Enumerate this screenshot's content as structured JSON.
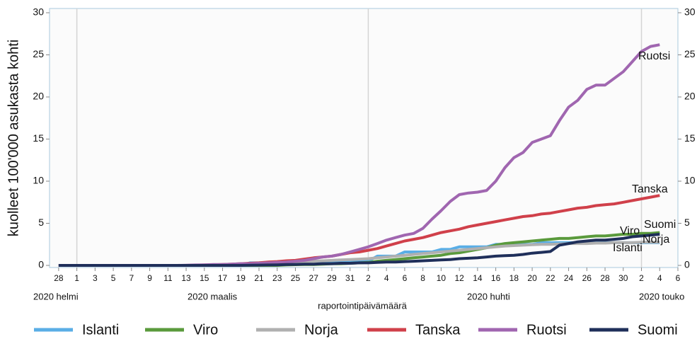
{
  "chart_data": {
    "type": "line",
    "y_label": "kuolleet 100'000 asukasta kohti",
    "x_label": "raportointipäivämäärä",
    "month_labels": [
      "2020 helmi",
      "2020 maalis",
      "2020 huhti",
      "2020 touko"
    ],
    "x": [
      "2020-02-28",
      "2020-02-29",
      "2020-03-01",
      "2020-03-02",
      "2020-03-03",
      "2020-03-04",
      "2020-03-05",
      "2020-03-06",
      "2020-03-07",
      "2020-03-08",
      "2020-03-09",
      "2020-03-10",
      "2020-03-11",
      "2020-03-12",
      "2020-03-13",
      "2020-03-14",
      "2020-03-15",
      "2020-03-16",
      "2020-03-17",
      "2020-03-18",
      "2020-03-19",
      "2020-03-20",
      "2020-03-21",
      "2020-03-22",
      "2020-03-23",
      "2020-03-24",
      "2020-03-25",
      "2020-03-26",
      "2020-03-27",
      "2020-03-28",
      "2020-03-29",
      "2020-03-30",
      "2020-03-31",
      "2020-04-01",
      "2020-04-02",
      "2020-04-03",
      "2020-04-04",
      "2020-04-05",
      "2020-04-06",
      "2020-04-07",
      "2020-04-08",
      "2020-04-09",
      "2020-04-10",
      "2020-04-11",
      "2020-04-12",
      "2020-04-13",
      "2020-04-14",
      "2020-04-15",
      "2020-04-16",
      "2020-04-17",
      "2020-04-18",
      "2020-04-19",
      "2020-04-20",
      "2020-04-21",
      "2020-04-22",
      "2020-04-23",
      "2020-04-24",
      "2020-04-25",
      "2020-04-26",
      "2020-04-27",
      "2020-04-28",
      "2020-04-29",
      "2020-04-30",
      "2020-05-01",
      "2020-05-02",
      "2020-05-03",
      "2020-05-04"
    ],
    "xlim": [
      "2020-02-27",
      "2020-05-06"
    ],
    "xticks": [
      {
        "value": "2020-02-28",
        "label": "28"
      },
      {
        "value": "2020-03-01",
        "label": "1"
      },
      {
        "value": "2020-03-03",
        "label": "3"
      },
      {
        "value": "2020-03-05",
        "label": "5"
      },
      {
        "value": "2020-03-07",
        "label": "7"
      },
      {
        "value": "2020-03-09",
        "label": "9"
      },
      {
        "value": "2020-03-11",
        "label": "11"
      },
      {
        "value": "2020-03-13",
        "label": "13"
      },
      {
        "value": "2020-03-15",
        "label": "15"
      },
      {
        "value": "2020-03-17",
        "label": "17"
      },
      {
        "value": "2020-03-19",
        "label": "19"
      },
      {
        "value": "2020-03-21",
        "label": "21"
      },
      {
        "value": "2020-03-23",
        "label": "23"
      },
      {
        "value": "2020-03-25",
        "label": "25"
      },
      {
        "value": "2020-03-27",
        "label": "27"
      },
      {
        "value": "2020-03-29",
        "label": "29"
      },
      {
        "value": "2020-03-31",
        "label": "31"
      },
      {
        "value": "2020-04-02",
        "label": "2"
      },
      {
        "value": "2020-04-04",
        "label": "4"
      },
      {
        "value": "2020-04-06",
        "label": "6"
      },
      {
        "value": "2020-04-08",
        "label": "8"
      },
      {
        "value": "2020-04-10",
        "label": "10"
      },
      {
        "value": "2020-04-12",
        "label": "12"
      },
      {
        "value": "2020-04-14",
        "label": "14"
      },
      {
        "value": "2020-04-16",
        "label": "16"
      },
      {
        "value": "2020-04-18",
        "label": "18"
      },
      {
        "value": "2020-04-20",
        "label": "20"
      },
      {
        "value": "2020-04-22",
        "label": "22"
      },
      {
        "value": "2020-04-24",
        "label": "24"
      },
      {
        "value": "2020-04-26",
        "label": "26"
      },
      {
        "value": "2020-04-28",
        "label": "28"
      },
      {
        "value": "2020-04-30",
        "label": "30"
      },
      {
        "value": "2020-05-02",
        "label": "2"
      },
      {
        "value": "2020-05-04",
        "label": "4"
      },
      {
        "value": "2020-05-06",
        "label": "6"
      }
    ],
    "ylim": [
      0,
      30
    ],
    "yticks": [
      0,
      5,
      10,
      15,
      20,
      25,
      30
    ],
    "y2lim": [
      0,
      30
    ],
    "y2ticks": [
      0,
      5,
      10,
      15,
      20,
      25,
      30
    ],
    "series": [
      {
        "name": "Islanti",
        "color": "#5aaee6",
        "values": [
          0,
          0,
          0,
          0,
          0,
          0,
          0,
          0,
          0,
          0,
          0,
          0,
          0,
          0,
          0,
          0,
          0,
          0,
          0,
          0,
          0,
          0.3,
          0.3,
          0.3,
          0.3,
          0.5,
          0.5,
          0.5,
          0.5,
          0.5,
          0.5,
          0.5,
          0.5,
          0.5,
          0.5,
          1.1,
          1.1,
          1.1,
          1.6,
          1.6,
          1.6,
          1.6,
          1.9,
          1.9,
          2.2,
          2.2,
          2.2,
          2.2,
          2.5,
          2.5,
          2.5,
          2.5,
          2.5,
          2.7,
          2.7,
          2.7,
          2.7,
          2.7,
          2.7,
          2.7,
          2.7,
          2.7,
          2.7,
          2.7,
          2.7,
          2.7,
          2.7
        ]
      },
      {
        "name": "Viro",
        "color": "#5a9a3c",
        "values": [
          0,
          0,
          0,
          0,
          0,
          0,
          0,
          0,
          0,
          0,
          0,
          0,
          0,
          0,
          0,
          0,
          0,
          0,
          0,
          0,
          0,
          0,
          0,
          0,
          0,
          0.05,
          0.08,
          0.1,
          0.1,
          0.15,
          0.2,
          0.2,
          0.25,
          0.3,
          0.35,
          0.5,
          0.6,
          0.7,
          0.8,
          0.9,
          1.0,
          1.1,
          1.2,
          1.4,
          1.5,
          1.7,
          1.9,
          2.1,
          2.4,
          2.6,
          2.7,
          2.8,
          2.9,
          3.0,
          3.1,
          3.2,
          3.2,
          3.3,
          3.4,
          3.5,
          3.5,
          3.6,
          3.7,
          3.7,
          3.8,
          3.8,
          3.9
        ]
      },
      {
        "name": "Norja",
        "color": "#b0b0b0",
        "values": [
          0,
          0,
          0,
          0,
          0,
          0,
          0,
          0,
          0,
          0,
          0,
          0,
          0,
          0,
          0,
          0,
          0.03,
          0.05,
          0.07,
          0.1,
          0.12,
          0.15,
          0.2,
          0.25,
          0.3,
          0.35,
          0.4,
          0.45,
          0.5,
          0.55,
          0.6,
          0.65,
          0.7,
          0.75,
          0.8,
          0.9,
          1.0,
          1.1,
          1.2,
          1.3,
          1.4,
          1.5,
          1.6,
          1.7,
          1.8,
          1.9,
          2.0,
          2.1,
          2.2,
          2.3,
          2.35,
          2.4,
          2.45,
          2.5,
          2.5,
          2.55,
          2.6,
          2.6,
          2.6,
          2.65,
          2.65,
          2.7,
          2.7,
          2.7,
          2.75,
          2.75,
          2.75
        ]
      },
      {
        "name": "Tanska",
        "color": "#d0404a",
        "values": [
          0,
          0,
          0,
          0,
          0,
          0,
          0,
          0,
          0,
          0,
          0,
          0,
          0,
          0,
          0,
          0.02,
          0.05,
          0.07,
          0.1,
          0.15,
          0.2,
          0.25,
          0.3,
          0.4,
          0.45,
          0.55,
          0.6,
          0.75,
          0.9,
          1.0,
          1.1,
          1.3,
          1.5,
          1.6,
          1.8,
          2.0,
          2.3,
          2.6,
          2.9,
          3.1,
          3.3,
          3.6,
          3.9,
          4.1,
          4.3,
          4.6,
          4.8,
          5.0,
          5.2,
          5.4,
          5.6,
          5.8,
          5.9,
          6.1,
          6.2,
          6.4,
          6.6,
          6.8,
          6.9,
          7.1,
          7.2,
          7.3,
          7.5,
          7.7,
          7.9,
          8.1,
          8.3
        ]
      },
      {
        "name": "Ruotsi",
        "color": "#a066b0",
        "values": [
          0,
          0,
          0,
          0,
          0,
          0,
          0,
          0,
          0,
          0,
          0,
          0,
          0,
          0,
          0.02,
          0.05,
          0.07,
          0.1,
          0.1,
          0.15,
          0.2,
          0.2,
          0.25,
          0.3,
          0.35,
          0.4,
          0.5,
          0.6,
          0.8,
          1.0,
          1.1,
          1.3,
          1.6,
          1.9,
          2.2,
          2.6,
          3.0,
          3.3,
          3.6,
          3.8,
          4.4,
          5.5,
          6.5,
          7.6,
          8.4,
          8.6,
          8.7,
          8.9,
          10.0,
          11.6,
          12.8,
          13.4,
          14.6,
          15.0,
          15.4,
          17.2,
          18.8,
          19.6,
          20.9,
          21.4,
          21.4,
          22.2,
          23.0,
          24.2,
          25.4,
          26.0,
          26.2
        ]
      },
      {
        "name": "Suomi",
        "color": "#1f2f5a",
        "values": [
          0,
          0,
          0,
          0,
          0,
          0,
          0,
          0,
          0,
          0,
          0,
          0,
          0,
          0,
          0,
          0,
          0,
          0,
          0,
          0,
          0,
          0.02,
          0.03,
          0.05,
          0.07,
          0.1,
          0.12,
          0.15,
          0.15,
          0.2,
          0.2,
          0.25,
          0.25,
          0.3,
          0.3,
          0.35,
          0.4,
          0.4,
          0.45,
          0.5,
          0.55,
          0.6,
          0.65,
          0.7,
          0.8,
          0.85,
          0.9,
          1.0,
          1.1,
          1.15,
          1.2,
          1.3,
          1.45,
          1.55,
          1.65,
          2.4,
          2.6,
          2.8,
          2.9,
          3.0,
          3.0,
          3.1,
          3.2,
          3.4,
          3.5,
          3.6,
          3.7
        ]
      }
    ]
  }
}
